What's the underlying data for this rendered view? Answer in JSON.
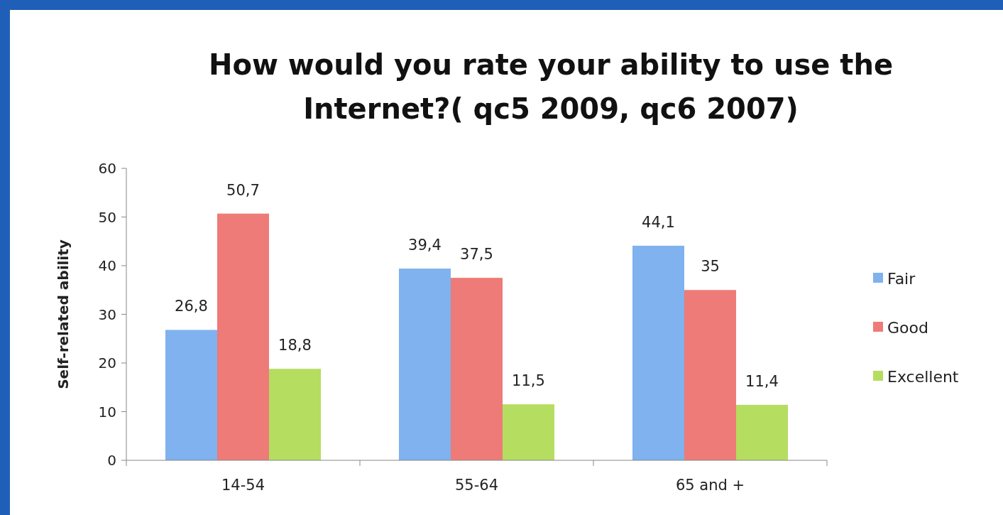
{
  "chart_data": {
    "type": "bar",
    "title": "How would you rate your ability to use the Internet?( qc5 2009, qc6 2007)",
    "ylabel": "Self-related ability",
    "categories": [
      "14-54",
      "55-64",
      "65 and +"
    ],
    "series": [
      {
        "name": "Fair",
        "color": "#7fb2ee",
        "values": [
          26.8,
          39.4,
          44.1
        ],
        "value_labels": [
          "26,8",
          "39,4",
          "44,1"
        ]
      },
      {
        "name": "Good",
        "color": "#ee7b78",
        "values": [
          50.7,
          37.5,
          35
        ],
        "value_labels": [
          "50,7",
          "37,5",
          "35"
        ]
      },
      {
        "name": "Excellent",
        "color": "#b5dd60",
        "values": [
          18.8,
          11.5,
          11.4
        ],
        "value_labels": [
          "18,8",
          "11,5",
          "11,4"
        ]
      }
    ],
    "ylim": [
      0,
      60
    ],
    "yticks": [
      0,
      10,
      20,
      30,
      40,
      50,
      60
    ],
    "grid": false,
    "legend": "right"
  }
}
